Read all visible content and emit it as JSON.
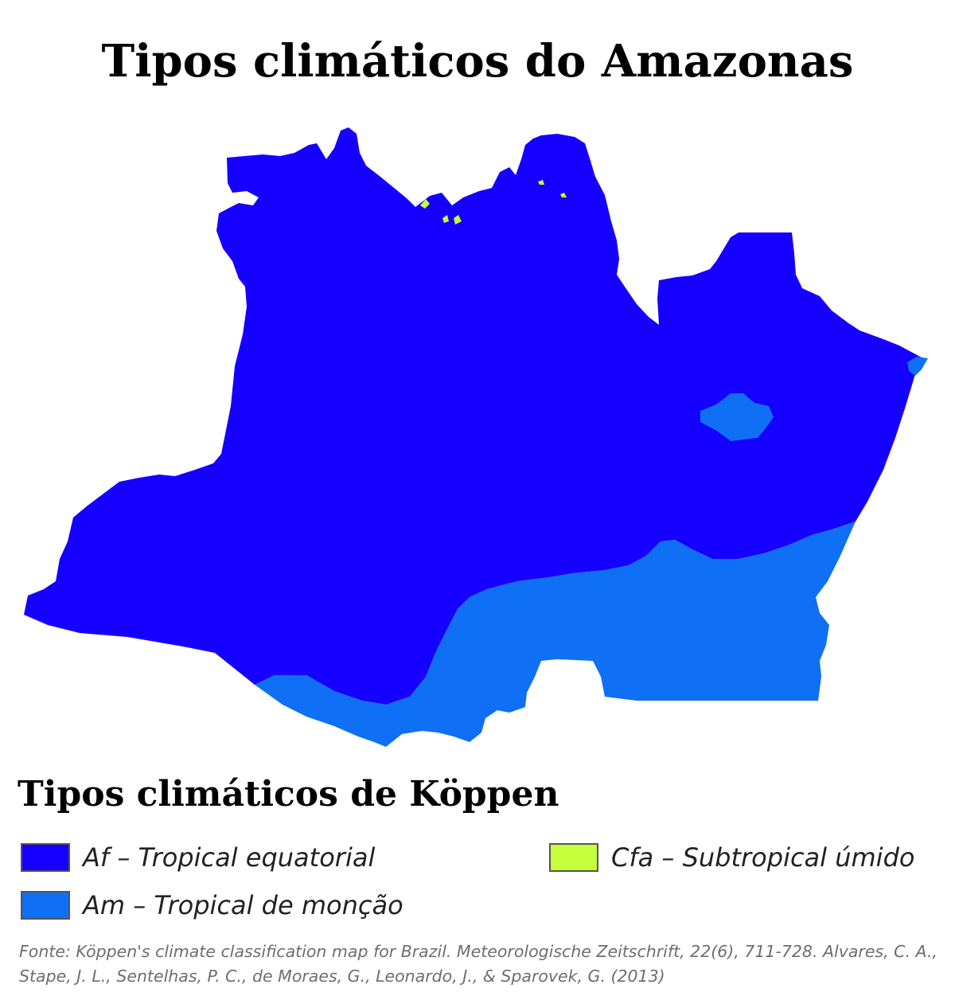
{
  "title": "Tipos climáticos do Amazonas",
  "legend": {
    "title": "Tipos climáticos de Köppen",
    "items": [
      {
        "code": "Af",
        "label": "Af – Tropical equatorial",
        "color": "#1500ff"
      },
      {
        "code": "Am",
        "label": "Am – Tropical de monção",
        "color": "#0f6ff5"
      },
      {
        "code": "Cfa",
        "label": "Cfa – Subtropical úmido",
        "color": "#c6ff3c"
      }
    ]
  },
  "source": "Fonte: Köppen's climate classification map for Brazil. Meteorologische Zeitschrift, 22(6), 711-728. Alvares, C. A., Stape, J. L., Sentelhas, P. C., de Moraes, G., Leonardo, J., & Sparovek, G. (2013)"
}
